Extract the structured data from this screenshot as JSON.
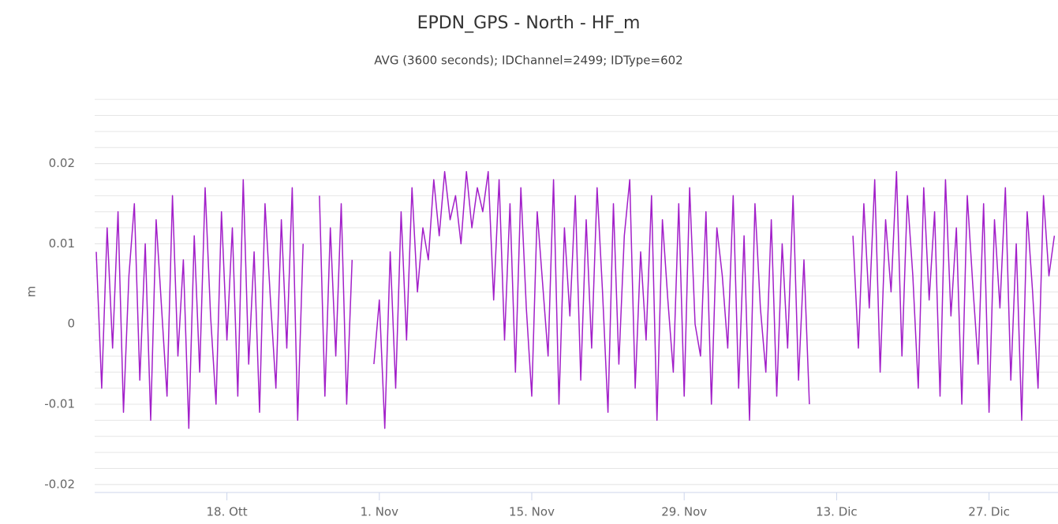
{
  "chart_data": {
    "type": "line",
    "title": "EPDN_GPS - North - HF_m",
    "subtitle": "AVG (3600 seconds); IDChannel=2499; IDType=602",
    "y_label": "m",
    "color": "#a21fc9",
    "ylim": [
      -0.021,
      0.029
    ],
    "yticks": [
      -0.02,
      -0.01,
      0,
      0.01,
      0.02
    ],
    "y_minor_ticks": [
      -0.02,
      -0.018,
      -0.016,
      -0.014,
      -0.012,
      -0.01,
      -0.008,
      -0.006,
      -0.004,
      -0.002,
      0,
      0.002,
      0.004,
      0.006,
      0.008,
      0.01,
      0.012,
      0.014,
      0.016,
      0.018,
      0.02,
      0.022,
      0.024,
      0.026,
      0.028
    ],
    "grid": true,
    "categories": [
      null,
      null,
      null,
      null,
      null,
      null,
      null,
      null,
      null,
      null,
      null,
      null,
      null,
      null,
      null,
      null,
      null,
      null,
      null,
      null,
      null,
      null,
      null,
      null,
      "18. Ott",
      null,
      null,
      null,
      null,
      null,
      null,
      null,
      null,
      null,
      null,
      null,
      null,
      null,
      null,
      null,
      null,
      null,
      null,
      null,
      null,
      null,
      null,
      null,
      null,
      null,
      null,
      null,
      "1. Nov",
      null,
      null,
      null,
      null,
      null,
      null,
      null,
      null,
      null,
      null,
      null,
      null,
      null,
      null,
      null,
      null,
      null,
      null,
      null,
      null,
      null,
      null,
      null,
      null,
      null,
      null,
      null,
      "15. Nov",
      null,
      null,
      null,
      null,
      null,
      null,
      null,
      null,
      null,
      null,
      null,
      null,
      null,
      null,
      null,
      null,
      null,
      null,
      null,
      null,
      null,
      null,
      null,
      null,
      null,
      null,
      null,
      "29. Nov",
      null,
      null,
      null,
      null,
      null,
      null,
      null,
      null,
      null,
      null,
      null,
      null,
      null,
      null,
      null,
      null,
      null,
      null,
      null,
      null,
      null,
      null,
      null,
      null,
      null,
      null,
      null,
      "13. Dic",
      null,
      null,
      null,
      null,
      null,
      null,
      null,
      null,
      null,
      null,
      null,
      null,
      null,
      null,
      null,
      null,
      null,
      null,
      null,
      null,
      null,
      null,
      null,
      null,
      null,
      null,
      null,
      "27. Dic",
      null,
      null,
      null,
      null,
      null,
      null,
      null,
      null,
      null,
      null,
      null,
      null
    ],
    "values": [
      0.009,
      -0.008,
      0.012,
      -0.003,
      0.014,
      -0.011,
      0.006,
      0.015,
      -0.007,
      0.01,
      -0.012,
      0.013,
      0.002,
      -0.009,
      0.016,
      -0.004,
      0.008,
      -0.013,
      0.011,
      -0.006,
      0.017,
      0.001,
      -0.01,
      0.014,
      -0.002,
      0.012,
      -0.009,
      0.018,
      -0.005,
      0.009,
      -0.011,
      0.015,
      0.003,
      -0.008,
      0.013,
      -0.003,
      0.017,
      -0.012,
      0.01,
      null,
      null,
      0.016,
      -0.009,
      0.012,
      -0.004,
      0.015,
      -0.01,
      0.008,
      null,
      null,
      null,
      -0.005,
      0.003,
      -0.013,
      0.009,
      -0.008,
      0.014,
      -0.002,
      0.017,
      0.004,
      0.012,
      0.008,
      0.018,
      0.011,
      0.019,
      0.013,
      0.016,
      0.01,
      0.019,
      0.012,
      0.017,
      0.014,
      0.019,
      0.003,
      0.018,
      -0.002,
      0.015,
      -0.006,
      0.017,
      0.002,
      -0.009,
      0.014,
      0.005,
      -0.004,
      0.018,
      -0.01,
      0.012,
      0.001,
      0.016,
      -0.007,
      0.013,
      -0.003,
      0.017,
      0.004,
      -0.011,
      0.015,
      -0.005,
      0.011,
      0.018,
      -0.008,
      0.009,
      -0.002,
      0.016,
      -0.012,
      0.013,
      0.003,
      -0.006,
      0.015,
      -0.009,
      0.017,
      0,
      -0.004,
      0.014,
      -0.01,
      0.012,
      0.006,
      -0.003,
      0.016,
      -0.008,
      0.011,
      -0.012,
      0.015,
      0.002,
      -0.006,
      0.013,
      -0.009,
      0.01,
      -0.003,
      0.016,
      -0.007,
      0.008,
      -0.01,
      null,
      null,
      null,
      null,
      null,
      null,
      null,
      0.011,
      -0.003,
      0.015,
      0.002,
      0.018,
      -0.006,
      0.013,
      0.004,
      0.019,
      -0.004,
      0.016,
      0.006,
      -0.008,
      0.017,
      0.003,
      0.014,
      -0.009,
      0.018,
      0.001,
      0.012,
      -0.01,
      0.016,
      0.005,
      -0.005,
      0.015,
      -0.011,
      0.013,
      0.002,
      0.017,
      -0.007,
      0.01,
      -0.012,
      0.014,
      0.004,
      -0.008,
      0.016,
      0.006,
      0.011
    ]
  }
}
